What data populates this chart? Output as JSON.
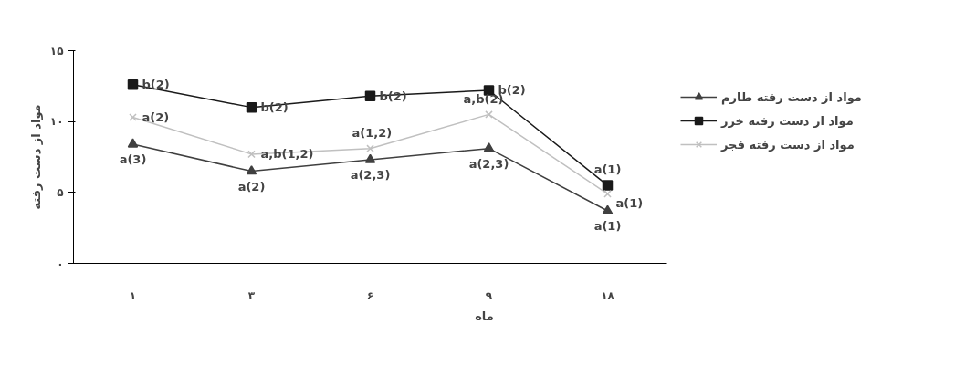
{
  "chart_data": {
    "type": "line",
    "xlabel": "ماه",
    "ylabel": "مواد از دست رفته",
    "categories": [
      "۱",
      "۳",
      "۶",
      "۹",
      "۱۸"
    ],
    "series": [
      {
        "name": "مواد از دست رفته طارم",
        "color": "#404040",
        "marker": "triangle",
        "values": [
          8.4,
          6.5,
          7.3,
          8.1,
          3.7
        ]
      },
      {
        "name": "مواد از دست رفته خزر",
        "color": "#1a1a1a",
        "marker": "square",
        "values": [
          12.6,
          11.0,
          11.8,
          12.2,
          5.5
        ]
      },
      {
        "name": "مواد از دست رفته فجر",
        "color": "#c0c0c0",
        "marker": "cross",
        "values": [
          10.3,
          7.7,
          8.1,
          10.5,
          4.9
        ]
      }
    ],
    "ylim": [
      0,
      15
    ],
    "yticks": [
      {
        "value": 0,
        "label": "۰"
      },
      {
        "value": 5,
        "label": "۵"
      },
      {
        "value": 10,
        "label": "۱۰"
      },
      {
        "value": 15,
        "label": "۱۵"
      }
    ],
    "grid": false,
    "legend": "right",
    "line_style": "solid",
    "annotations": [
      {
        "text": "a(3)",
        "x": "۱",
        "y": 8.4
      },
      {
        "text": "a(2)",
        "x": "۳",
        "y": 6.5
      },
      {
        "text": "a(2,3)",
        "x": "۶",
        "y": 7.3
      },
      {
        "text": "a(2,3)",
        "x": "۹",
        "y": 8.1
      },
      {
        "text": "a(1)",
        "x": "۱۸",
        "y": 3.7
      },
      {
        "text": "b(2)",
        "x": "۱",
        "y": 12.6
      },
      {
        "text": "b(2)",
        "x": "۳",
        "y": 11.0
      },
      {
        "text": "b(2)",
        "x": "۶",
        "y": 11.8
      },
      {
        "text": "b(2)",
        "x": "۹",
        "y": 12.2
      },
      {
        "text": "a(1)",
        "x": "۱۸",
        "y": 5.5
      },
      {
        "text": "a(2)",
        "x": "۱",
        "y": 10.3
      },
      {
        "text": "a,b(1,2)",
        "x": "۳",
        "y": 7.7
      },
      {
        "text": "a(1,2)",
        "x": "۶",
        "y": 8.1
      },
      {
        "text": "a,b(2)",
        "x": "۹",
        "y": 10.5
      },
      {
        "text": "a(1)",
        "x": "۱۸",
        "y": 4.9
      }
    ]
  }
}
